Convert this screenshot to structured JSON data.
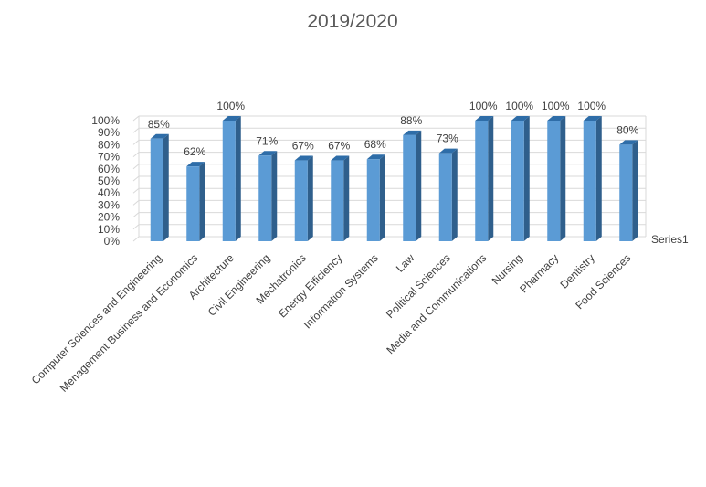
{
  "chart_data": {
    "type": "bar",
    "title": "2019/2020",
    "categories": [
      "Computer Sciences and Engineering",
      "Menagement Business and Economics",
      "Architecture",
      "Civil Engineering",
      "Mechatronics",
      "Energy Efficiency",
      "Information Systems",
      "Law",
      "Political Sciences",
      "Media and Communications",
      "Nursing",
      "Pharmacy",
      "Dentistry",
      "Food Sciences"
    ],
    "series": [
      {
        "name": "Series1",
        "values": [
          85,
          62,
          100,
          71,
          67,
          67,
          68,
          88,
          73,
          100,
          100,
          100,
          100,
          80
        ],
        "labels": [
          "85%",
          "62%",
          "100%",
          "71%",
          "67%",
          "67%",
          "68%",
          "88%",
          "73%",
          "100%",
          "100%",
          "100%",
          "100%",
          "80%"
        ]
      }
    ],
    "y_ticks": [
      "0%",
      "10%",
      "20%",
      "30%",
      "40%",
      "50%",
      "60%",
      "70%",
      "80%",
      "90%",
      "100%"
    ],
    "ylim": [
      0,
      100
    ],
    "grid": true,
    "style": "3d-column",
    "colors": {
      "bar_front": "#5b9bd5",
      "bar_top": "#2e6da8",
      "bar_side": "#2f5f8c",
      "grid": "#d9d9d9",
      "text": "#404040",
      "title": "#595959"
    }
  }
}
